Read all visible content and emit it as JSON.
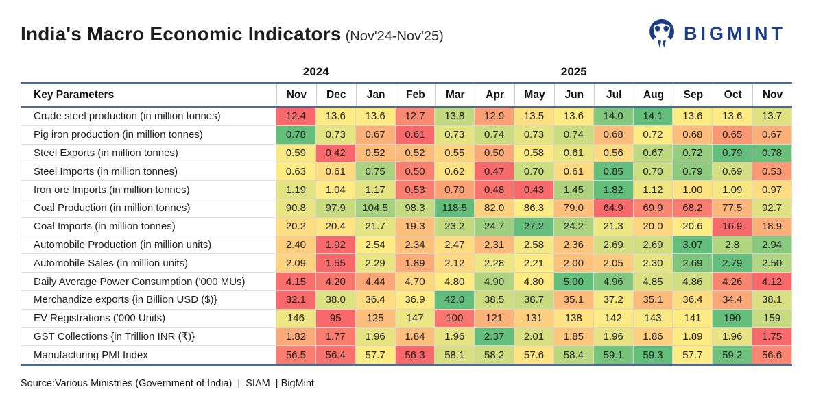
{
  "header": {
    "title": "India's Macro Economic Indicators",
    "subtitle": "(Nov'24-Nov'25)",
    "brand": "BIGMINT",
    "brand_color": "#1e3d87"
  },
  "chart_data": {
    "type": "heatmap",
    "title": "India's Macro Economic Indicators (Nov'24-Nov'25)",
    "row_header": "Key Parameters",
    "column_years": [
      {
        "label": "2024",
        "span": 2
      },
      {
        "label": "2025",
        "span": 11
      }
    ],
    "columns": [
      "Nov",
      "Dec",
      "Jan",
      "Feb",
      "Mar",
      "Apr",
      "May",
      "Jun",
      "Jul",
      "Aug",
      "Sep",
      "Oct",
      "Nov"
    ],
    "rows": [
      {
        "label": "Crude steel production (in million tonnes)",
        "values": [
          "12.4",
          "13.6",
          "13.6",
          "12.7",
          "13.8",
          "12.9",
          "13.5",
          "13.6",
          "14.0",
          "14.1",
          "13.6",
          "13.6",
          "13.7"
        ]
      },
      {
        "label": "Pig iron production (in million tonnes)",
        "values": [
          "0.78",
          "0.73",
          "0.67",
          "0.61",
          "0.73",
          "0.74",
          "0.73",
          "0.74",
          "0.68",
          "0.72",
          "0.68",
          "0.65",
          "0.67"
        ]
      },
      {
        "label": "Steel Exports (in million tonnes)",
        "values": [
          "0.59",
          "0.42",
          "0.52",
          "0.52",
          "0.55",
          "0.50",
          "0.58",
          "0.61",
          "0.56",
          "0.67",
          "0.72",
          "0.79",
          "0.78"
        ]
      },
      {
        "label": "Steel Imports (in million tonnes)",
        "values": [
          "0.63",
          "0.61",
          "0.75",
          "0.50",
          "0.62",
          "0.47",
          "0.70",
          "0.61",
          "0.85",
          "0.70",
          "0.79",
          "0.69",
          "0.53"
        ]
      },
      {
        "label": "Iron ore Imports (in million tonnes)",
        "values": [
          "1.19",
          "1.04",
          "1.17",
          "0.53",
          "0.70",
          "0.48",
          "0.43",
          "1.45",
          "1.82",
          "1.12",
          "1.00",
          "1.09",
          "0.97"
        ]
      },
      {
        "label": "Coal Production (in million tonnes)",
        "values": [
          "90.8",
          "97.9",
          "104.5",
          "98.3",
          "118.5",
          "82.0",
          "86.3",
          "79.0",
          "64.9",
          "69.9",
          "68.2",
          "77.5",
          "92.7"
        ]
      },
      {
        "label": "Coal Imports (in million tonnes)",
        "values": [
          "20.2",
          "20.4",
          "21.7",
          "19.3",
          "23.2",
          "24.7",
          "27.2",
          "24.2",
          "21.3",
          "20.0",
          "20.6",
          "16.9",
          "18.9"
        ]
      },
      {
        "label": "Automobile Production (in million units)",
        "values": [
          "2.40",
          "1.92",
          "2.54",
          "2.34",
          "2.47",
          "2.31",
          "2.58",
          "2.36",
          "2.69",
          "2.69",
          "3.07",
          "2.8",
          "2.94"
        ]
      },
      {
        "label": "Automobile Sales (in million units)",
        "values": [
          "2.09",
          "1.55",
          "2.29",
          "1.89",
          "2.12",
          "2.28",
          "2.21",
          "2.00",
          "2.05",
          "2.30",
          "2.69",
          "2.79",
          "2.50"
        ]
      },
      {
        "label": "Daily Average Power Consumption ('000 MUs)",
        "values": [
          "4.15",
          "4.20",
          "4.44",
          "4.70",
          "4.80",
          "4.90",
          "4.80",
          "5.00",
          "4.96",
          "4.85",
          "4.86",
          "4.26",
          "4.12"
        ]
      },
      {
        "label": "Merchandize exports {in Billion USD ($)}",
        "values": [
          "32.1",
          "38.0",
          "36.4",
          "36.9",
          "42.0",
          "38.5",
          "38.7",
          "35.1",
          "37.2",
          "35.1",
          "36.4",
          "34.4",
          "38.1"
        ]
      },
      {
        "label": "EV Registrations ('000 Units)",
        "values": [
          "146",
          "95",
          "125",
          "147",
          "100",
          "121",
          "131",
          "138",
          "142",
          "143",
          "141",
          "190",
          "159"
        ]
      },
      {
        "label": "GST Collections {in Trillion INR (₹)}",
        "values": [
          "1.82",
          "1.77",
          "1.96",
          "1.84",
          "1.96",
          "2.37",
          "2.01",
          "1.85",
          "1.96",
          "1.86",
          "1.89",
          "1.96",
          "1.75"
        ]
      },
      {
        "label": "Manufacturing PMI Index",
        "values": [
          "56.5",
          "56.4",
          "57.7",
          "56.3",
          "58.1",
          "58.2",
          "57.6",
          "58.4",
          "59.1",
          "59.3",
          "57.7",
          "59.2",
          "56.6"
        ]
      }
    ],
    "colorscale": {
      "min_color": "#F8696B",
      "mid_color": "#FFEB84",
      "max_color": "#63BE7B",
      "midpoint": "row-median"
    },
    "accent_line_color": "#4569ad",
    "legend_position": "none",
    "grid": true
  },
  "footer": {
    "source": "Source:Various Ministries (Government of India)  |  SIAM  | BigMint"
  }
}
